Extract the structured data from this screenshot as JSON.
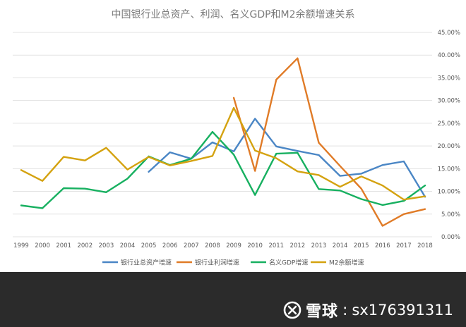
{
  "chart_data": {
    "type": "line",
    "title": "中国银行业总资产、利润、名义GDP和M2余额增速关系",
    "categories": [
      "1999",
      "2000",
      "2001",
      "2002",
      "2003",
      "2004",
      "2005",
      "2006",
      "2007",
      "2008",
      "2009",
      "2010",
      "2011",
      "2012",
      "2013",
      "2014",
      "2015",
      "2016",
      "2017",
      "2018"
    ],
    "ylim": [
      0,
      45
    ],
    "yticks": [
      "0.00%",
      "5.00%",
      "10.00%",
      "15.00%",
      "20.00%",
      "25.00%",
      "30.00%",
      "35.00%",
      "40.00%",
      "45.00%"
    ],
    "y_axis_position": "right",
    "grid": true,
    "legend_position": "bottom",
    "series": [
      {
        "name": "银行业总资产增速",
        "color": "#4a86c5",
        "values": [
          null,
          null,
          null,
          null,
          null,
          null,
          14.3,
          18.6,
          17.2,
          20.8,
          18.8,
          26.0,
          19.9,
          18.9,
          18.0,
          13.4,
          13.9,
          15.8,
          16.6,
          8.8
        ]
      },
      {
        "name": "银行业利润增速",
        "color": "#e07b27",
        "values": [
          null,
          null,
          null,
          null,
          null,
          null,
          null,
          null,
          null,
          null,
          30.6,
          14.5,
          34.6,
          39.3,
          20.7,
          15.6,
          10.6,
          2.4,
          5.0,
          6.1
        ]
      },
      {
        "name": "名义GDP增速",
        "color": "#17b060",
        "values": [
          6.9,
          6.3,
          10.7,
          10.6,
          9.8,
          12.8,
          17.7,
          15.8,
          17.2,
          23.1,
          18.1,
          9.2,
          18.3,
          18.5,
          10.5,
          10.2,
          8.3,
          7.0,
          7.9,
          11.3
        ]
      },
      {
        "name": "M2余额增速",
        "color": "#d4a20f",
        "values": [
          14.7,
          12.3,
          17.6,
          16.8,
          19.6,
          14.8,
          17.6,
          15.7,
          16.7,
          17.8,
          28.4,
          19.0,
          17.3,
          14.4,
          13.6,
          11.0,
          13.3,
          11.3,
          8.2,
          8.9
        ]
      }
    ]
  },
  "watermark": {
    "brand": "雪球",
    "colon": ":",
    "handle": "sx176391311",
    "logo_icon": "xueqiu-logo"
  }
}
